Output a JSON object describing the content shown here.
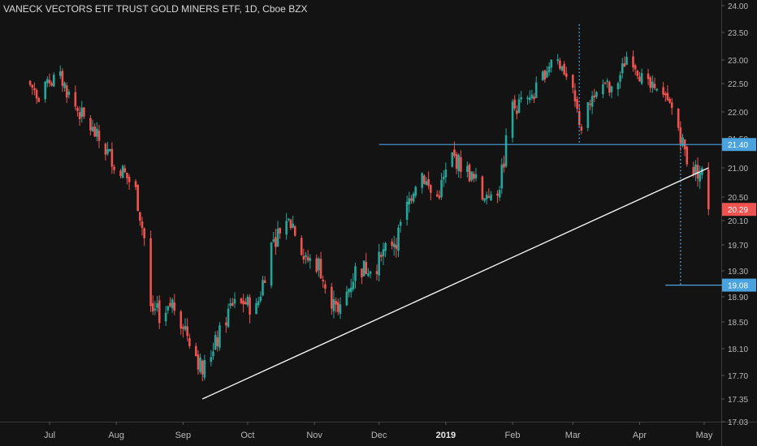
{
  "chart_data": {
    "type": "candlestick",
    "title": "VANECK VECTORS ETF TRUST GOLD MINERS ETF, 1D, Cboe BZX",
    "ylim": [
      17.03,
      24.0
    ],
    "y_ticks": [
      "24.00",
      "23.50",
      "23.00",
      "22.50",
      "22.00",
      "21.50",
      "21.00",
      "20.50",
      "20.10",
      "19.70",
      "19.30",
      "18.90",
      "18.50",
      "18.10",
      "17.70",
      "17.35",
      "17.03"
    ],
    "x_ticks": [
      "Jul",
      "Aug",
      "Sep",
      "Oct",
      "Nov",
      "Dec",
      "2019",
      "Feb",
      "Mar",
      "Apr",
      "May"
    ],
    "bold_x_tick": "2019",
    "price_labels": [
      {
        "value": 21.4,
        "text": "21.40",
        "color": "#4aa3df"
      },
      {
        "value": 19.08,
        "text": "19.08",
        "color": "#4aa3df"
      },
      {
        "value": 20.29,
        "text": "20.29",
        "color": "#ef5350"
      }
    ],
    "up_color": "#26a69a",
    "down_color": "#ef5350",
    "anchors": [
      {
        "date": "Jun 20",
        "close": 22.55
      },
      {
        "date": "Jun 27",
        "close": 22.3
      },
      {
        "date": "Jul 5",
        "close": 22.7
      },
      {
        "date": "Jul 12",
        "close": 22.15
      },
      {
        "date": "Jul 20",
        "close": 21.7
      },
      {
        "date": "Jul 27",
        "close": 21.3
      },
      {
        "date": "Aug 3",
        "close": 21.0
      },
      {
        "date": "Aug 10",
        "close": 20.6
      },
      {
        "date": "Aug 14",
        "close": 19.8
      },
      {
        "date": "Aug 17",
        "close": 18.7
      },
      {
        "date": "Aug 22",
        "close": 18.6
      },
      {
        "date": "Aug 27",
        "close": 18.8
      },
      {
        "date": "Aug 31",
        "close": 18.55
      },
      {
        "date": "Sep 5",
        "close": 18.2
      },
      {
        "date": "Sep 10",
        "close": 17.75
      },
      {
        "date": "Sep 18",
        "close": 18.3
      },
      {
        "date": "Sep 25",
        "close": 18.9
      },
      {
        "date": "Oct 5",
        "close": 18.7
      },
      {
        "date": "Oct 12",
        "close": 19.7
      },
      {
        "date": "Oct 20",
        "close": 20.2
      },
      {
        "date": "Oct 27",
        "close": 19.5
      },
      {
        "date": "Nov 3",
        "close": 19.4
      },
      {
        "date": "Nov 12",
        "close": 18.6
      },
      {
        "date": "Nov 20",
        "close": 19.3
      },
      {
        "date": "Nov 30",
        "close": 19.4
      },
      {
        "date": "Dec 10",
        "close": 19.9
      },
      {
        "date": "Dec 20",
        "close": 21.0
      },
      {
        "date": "Dec 27",
        "close": 20.4
      },
      {
        "date": "Jan 4",
        "close": 21.2
      },
      {
        "date": "Jan 12",
        "close": 20.9
      },
      {
        "date": "Jan 20",
        "close": 20.4
      },
      {
        "date": "Jan 25",
        "close": 20.5
      },
      {
        "date": "Feb 1",
        "close": 22.1
      },
      {
        "date": "Feb 10",
        "close": 22.2
      },
      {
        "date": "Feb 20",
        "close": 23.1
      },
      {
        "date": "Feb 26",
        "close": 22.7
      },
      {
        "date": "Mar 5",
        "close": 21.7
      },
      {
        "date": "Mar 12",
        "close": 22.5
      },
      {
        "date": "Mar 20",
        "close": 22.3
      },
      {
        "date": "Mar 27",
        "close": 23.2
      },
      {
        "date": "Apr 3",
        "close": 22.5
      },
      {
        "date": "Apr 10",
        "close": 22.3
      },
      {
        "date": "Apr 17",
        "close": 22.0
      },
      {
        "date": "Apr 24",
        "close": 21.0
      },
      {
        "date": "May 1",
        "close": 20.9
      },
      {
        "date": "May 3",
        "close": 20.29
      }
    ],
    "annotations": [
      {
        "kind": "horizontal-line",
        "value": 21.4,
        "from": "Dec 1",
        "to": "May 10",
        "color": "#4aa3df"
      },
      {
        "kind": "horizontal-line",
        "value": 19.08,
        "from": "Apr 13",
        "to": "May 10",
        "color": "#4aa3df"
      },
      {
        "kind": "trend-line",
        "from": {
          "date": "Sep 10",
          "value": 17.35
        },
        "to": {
          "date": "May 3",
          "value": 21.0
        },
        "color": "#ffffff"
      },
      {
        "kind": "dotted-vertical",
        "date": "Mar 4",
        "from": 23.65,
        "to": 21.4,
        "color": "#4aa3df"
      },
      {
        "kind": "dotted-vertical",
        "date": "Apr 20",
        "from": 21.4,
        "to": 19.08,
        "color": "#4aa3df"
      }
    ]
  }
}
